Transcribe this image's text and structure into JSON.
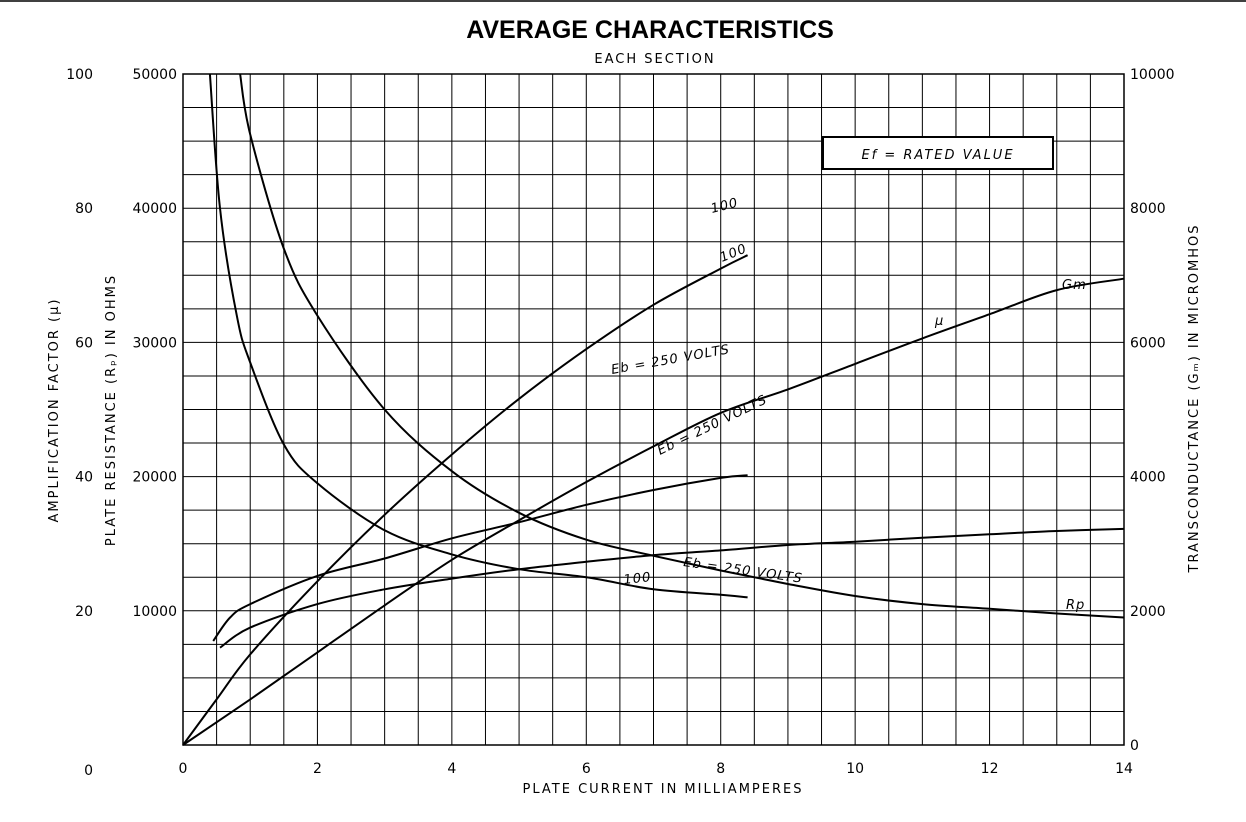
{
  "chart_data": {
    "type": "line",
    "title": "AVERAGE CHARACTERISTICS",
    "subtitle": "EACH SECTION",
    "xlabel": "PLATE CURRENT IN MILLIAMPERES",
    "ylabel_mu": "AMPLIFICATION FACTOR (μ)",
    "ylabel_rp": "PLATE RESISTANCE (Rₚ) IN OHMS",
    "ylabel_gm": "TRANSCONDUCTANCE (Gₘ) IN MICROMHOS",
    "xlim": [
      0,
      14
    ],
    "ylim_mu": [
      0,
      100
    ],
    "ylim_rp": [
      0,
      50000
    ],
    "ylim_gm": [
      0,
      10000
    ],
    "grid": true,
    "x_ticks": [
      "0",
      "2",
      "4",
      "6",
      "8",
      "10",
      "12",
      "14"
    ],
    "mu_ticks": [
      "0",
      "20",
      "40",
      "60",
      "80",
      "100"
    ],
    "rp_ticks": [
      "10000",
      "20000",
      "30000",
      "40000",
      "50000"
    ],
    "gm_ticks": [
      "0",
      "2000",
      "4000",
      "6000",
      "8000",
      "10000"
    ],
    "note": "Ef = RATED VALUE",
    "series": [
      {
        "name": "μ",
        "axis": "mu",
        "label": "Eb = 250 VOLTS",
        "end_label": "μ",
        "points": [
          [
            0.55,
            14.5
          ],
          [
            1,
            17.5
          ],
          [
            2,
            21
          ],
          [
            3,
            23.2
          ],
          [
            4,
            24.8
          ],
          [
            5,
            26.2
          ],
          [
            6,
            27.3
          ],
          [
            7,
            28.3
          ],
          [
            8,
            29
          ],
          [
            9,
            29.8
          ],
          [
            10,
            30.3
          ],
          [
            11,
            30.9
          ],
          [
            12,
            31.4
          ],
          [
            13,
            31.9
          ],
          [
            14,
            32.2
          ]
        ]
      },
      {
        "name": "μ 100",
        "axis": "mu",
        "label": "100",
        "points": [
          [
            0.45,
            15.5
          ],
          [
            0.7,
            19
          ],
          [
            1,
            21
          ],
          [
            2,
            25.2
          ],
          [
            3,
            27.8
          ],
          [
            4,
            30.8
          ],
          [
            5,
            33.2
          ],
          [
            6,
            35.8
          ],
          [
            7,
            38
          ],
          [
            8,
            39.8
          ],
          [
            8.4,
            40.2
          ]
        ]
      },
      {
        "name": "Gm",
        "axis": "gm",
        "label": "Eb = 250 VOLTS",
        "end_label": "Gm",
        "points": [
          [
            0,
            0
          ],
          [
            1,
            680
          ],
          [
            2,
            1380
          ],
          [
            3,
            2080
          ],
          [
            4,
            2760
          ],
          [
            5,
            3350
          ],
          [
            6,
            3920
          ],
          [
            7,
            4450
          ],
          [
            8,
            4950
          ],
          [
            9,
            5300
          ],
          [
            10,
            5680
          ],
          [
            11,
            6060
          ],
          [
            12,
            6420
          ],
          [
            13,
            6780
          ],
          [
            14,
            6950
          ]
        ]
      },
      {
        "name": "Gm 100",
        "axis": "gm",
        "label": "100",
        "points": [
          [
            0,
            0
          ],
          [
            0.5,
            680
          ],
          [
            1,
            1350
          ],
          [
            2,
            2440
          ],
          [
            3,
            3430
          ],
          [
            4,
            4330
          ],
          [
            5,
            5160
          ],
          [
            6,
            5900
          ],
          [
            7,
            6560
          ],
          [
            8,
            7100
          ],
          [
            8.4,
            7300
          ]
        ]
      },
      {
        "name": "Rp",
        "axis": "rp",
        "label": "Eb = 250 VOLTS",
        "end_label": "Rp",
        "points": [
          [
            0.85,
            50000
          ],
          [
            1,
            45500
          ],
          [
            1.5,
            37000
          ],
          [
            2,
            32000
          ],
          [
            3,
            25000
          ],
          [
            4,
            20400
          ],
          [
            5,
            17300
          ],
          [
            6,
            15300
          ],
          [
            7,
            14100
          ],
          [
            8,
            13000
          ],
          [
            9,
            12000
          ],
          [
            10,
            11100
          ],
          [
            11,
            10500
          ],
          [
            12,
            10150
          ],
          [
            13,
            9800
          ],
          [
            14,
            9500
          ]
        ]
      },
      {
        "name": "Rp 100",
        "axis": "rp",
        "label": "100",
        "points": [
          [
            0.4,
            50000
          ],
          [
            0.55,
            40000
          ],
          [
            0.8,
            32000
          ],
          [
            1,
            28500
          ],
          [
            1.5,
            22400
          ],
          [
            2,
            19500
          ],
          [
            3,
            16000
          ],
          [
            4,
            14200
          ],
          [
            5,
            13100
          ],
          [
            6,
            12500
          ],
          [
            7,
            11600
          ],
          [
            8,
            11200
          ],
          [
            8.4,
            11000
          ]
        ]
      }
    ]
  }
}
